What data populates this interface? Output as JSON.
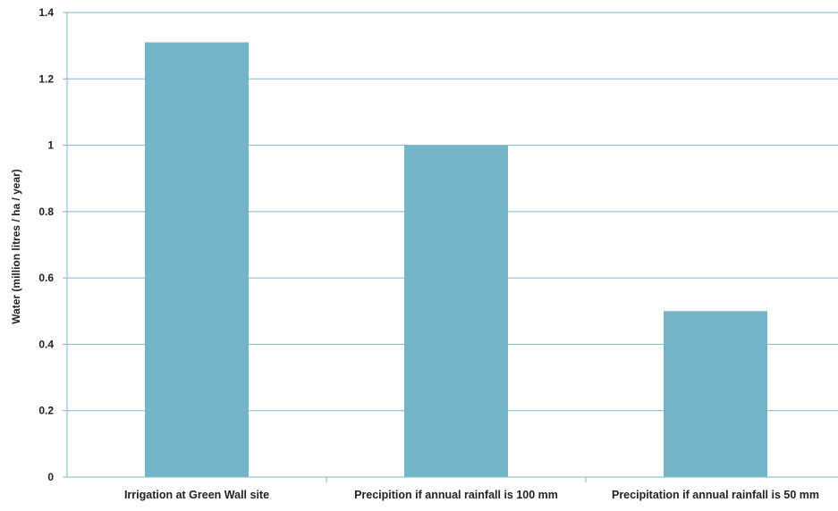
{
  "chart_data": {
    "type": "bar",
    "title": "",
    "xlabel": "",
    "ylabel": "Water (million litres / ha / year)",
    "categories": [
      "Irrigation at Green Wall site",
      "Precipition if annual rainfall is 100 mm",
      "Precipitation if annual rainfall is 50 mm"
    ],
    "values": [
      1.31,
      1.0,
      0.5
    ],
    "ylim": [
      0,
      1.4
    ],
    "yticks": [
      0,
      0.2,
      0.4,
      0.6,
      0.8,
      1,
      1.2,
      1.4
    ],
    "ytick_labels": [
      "0",
      "0.2",
      "0.4",
      "0.6",
      "0.8",
      "1",
      "1.2",
      "1.4"
    ],
    "grid": true,
    "legend": "none",
    "colors": {
      "bar": "#74b4c8",
      "grid": "#7fb8cc",
      "axis": "#7fb8cc",
      "text": "#222222"
    }
  }
}
